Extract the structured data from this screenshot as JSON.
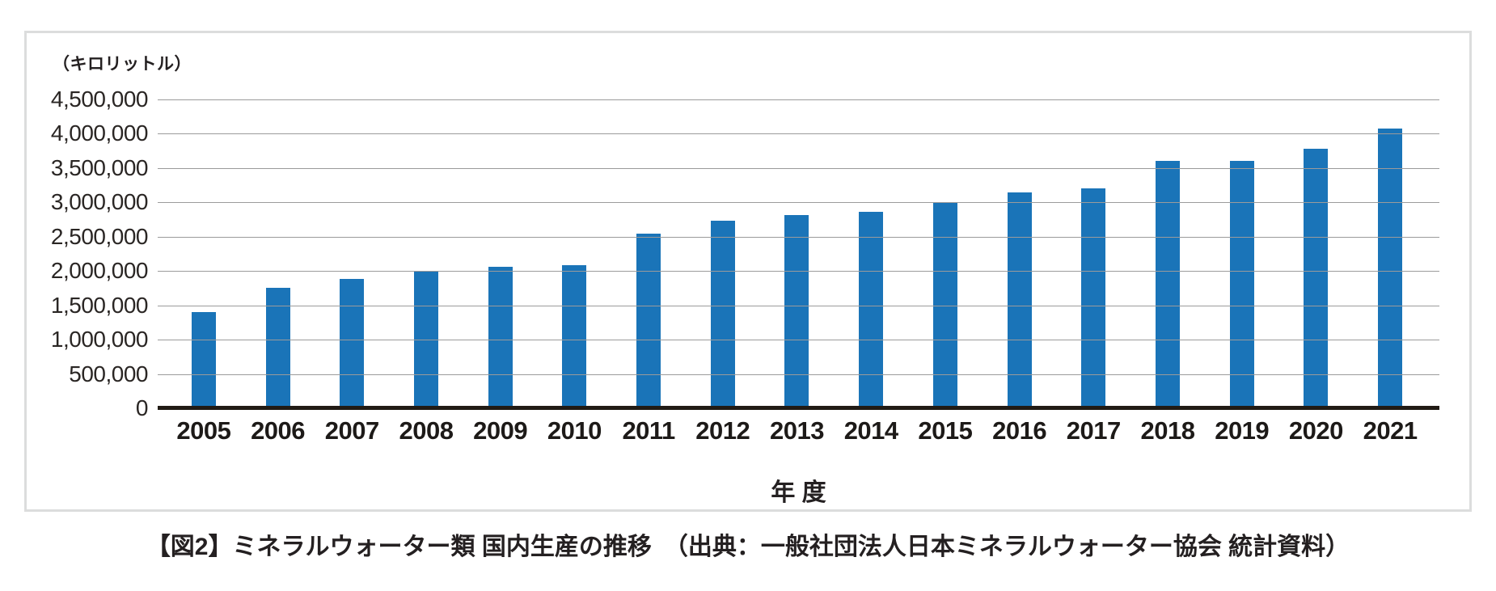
{
  "chart": {
    "unit_label": "（キロリットル）",
    "xlabel": "年 度",
    "caption": "【図2】ミネラルウォーター類 国内生産の推移　（出典：一般社団法人日本ミネラルウォーター協会 統計資料）"
  },
  "chart_data": {
    "type": "bar",
    "title": "ミネラルウォーター類 国内生産の推移",
    "source": "一般社団法人日本ミネラルウォーター協会 統計資料",
    "unit": "キロリットル",
    "xlabel": "年 度",
    "ylabel": "（キロリットル）",
    "categories": [
      "2005",
      "2006",
      "2007",
      "2008",
      "2009",
      "2010",
      "2011",
      "2012",
      "2013",
      "2014",
      "2015",
      "2016",
      "2017",
      "2018",
      "2019",
      "2020",
      "2021"
    ],
    "values": [
      1400000,
      1760000,
      1880000,
      2000000,
      2060000,
      2080000,
      2550000,
      2730000,
      2810000,
      2860000,
      3000000,
      3140000,
      3200000,
      3600000,
      3600000,
      3780000,
      4080000
    ],
    "ylim": [
      0,
      4500000
    ],
    "ytick_step": 500000,
    "y_ticks": [
      {
        "value": 0,
        "label": "0"
      },
      {
        "value": 500000,
        "label": "500,000"
      },
      {
        "value": 1000000,
        "label": "1,000,000"
      },
      {
        "value": 1500000,
        "label": "1,500,000"
      },
      {
        "value": 2000000,
        "label": "2,000,000"
      },
      {
        "value": 2500000,
        "label": "2,500,000"
      },
      {
        "value": 3000000,
        "label": "3,000,000"
      },
      {
        "value": 3500000,
        "label": "3,500,000"
      },
      {
        "value": 4000000,
        "label": "4,000,000"
      },
      {
        "value": 4500000,
        "label": "4,500,000"
      }
    ],
    "grid": true,
    "legend": false,
    "bar_color": "#1a74b8",
    "gridline_color": "#9b9b9b",
    "axis_color": "#211b15",
    "frame_border_color": "#dcdddd",
    "text_color": "#242021"
  }
}
